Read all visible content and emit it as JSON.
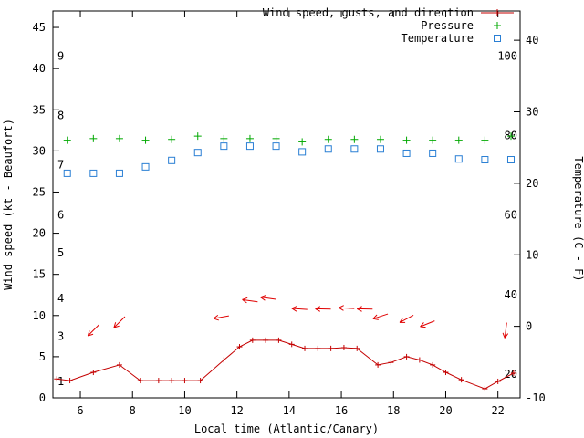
{
  "page": {
    "background": "#ffffff"
  },
  "chart_data": {
    "type": "line",
    "title": "",
    "xlabel": "Local time (Atlantic/Canary)",
    "ylabel_left": "Wind speed (kt - Beaufort)",
    "ylabel_right": "Temperature (C - F)",
    "x_range": [
      4.95,
      22.85
    ],
    "y_left_range": [
      0,
      47
    ],
    "y_right_range": [
      -10,
      44.1
    ],
    "x_ticks": [
      6,
      8,
      10,
      12,
      14,
      16,
      18,
      20,
      22
    ],
    "y_left_ticks": [
      0,
      5,
      10,
      15,
      20,
      25,
      30,
      35,
      40,
      45
    ],
    "y_right_ticks": [
      -10,
      0,
      10,
      20,
      30,
      40
    ],
    "grid": false,
    "legend_position": "top-right-inside",
    "beaufort_scale_labels": [
      {
        "label": "1",
        "kt": 2.0
      },
      {
        "label": "3",
        "kt": 7.5
      },
      {
        "label": "4",
        "kt": 12.1
      },
      {
        "label": "5",
        "kt": 17.6
      },
      {
        "label": "6",
        "kt": 22.2
      },
      {
        "label": "7",
        "kt": 28.3
      },
      {
        "label": "8",
        "kt": 34.3
      },
      {
        "label": "9",
        "kt": 41.5
      }
    ],
    "fahrenheit_scale_labels": [
      {
        "label": "20",
        "c": -6.7
      },
      {
        "label": "40",
        "c": 4.4
      },
      {
        "label": "60",
        "c": 15.6
      },
      {
        "label": "80",
        "c": 26.7
      },
      {
        "label": "100",
        "c": 37.8
      }
    ],
    "legend": [
      {
        "label": "Wind speed, gusts, and direction",
        "color": "#c40000",
        "marker": "line-plus"
      },
      {
        "label": "Pressure",
        "color": "#00a800",
        "marker": "plus"
      },
      {
        "label": "Temperature",
        "color": "#2a7fd4",
        "marker": "square"
      }
    ],
    "series": {
      "wind_speed": {
        "name": "Wind speed, gusts, and direction",
        "color": "#c40000",
        "axis": "left",
        "x": [
          5.1,
          5.6,
          6.5,
          7.5,
          8.3,
          9.0,
          9.5,
          10.0,
          10.6,
          11.5,
          12.1,
          12.6,
          13.1,
          13.6,
          14.1,
          14.6,
          15.1,
          15.6,
          16.1,
          16.6,
          17.4,
          17.9,
          18.5,
          19.0,
          19.5,
          20.0,
          20.6,
          21.5,
          22.0,
          22.6
        ],
        "kt": [
          2.3,
          2.1,
          3.1,
          4.0,
          2.1,
          2.1,
          2.1,
          2.1,
          2.1,
          4.6,
          6.2,
          7.0,
          7.0,
          7.0,
          6.5,
          6.0,
          6.0,
          6.0,
          6.1,
          6.0,
          4.0,
          4.3,
          5.0,
          4.6,
          4.0,
          3.1,
          2.2,
          1.1,
          2.0,
          3.0
        ]
      },
      "pressure": {
        "name": "Pressure",
        "color": "#00a800",
        "axis": "hidden",
        "x": [
          5.5,
          6.5,
          7.5,
          8.5,
          9.5,
          10.5,
          11.5,
          12.5,
          13.5,
          14.5,
          15.5,
          16.5,
          17.5,
          18.5,
          19.5,
          20.5,
          21.5,
          22.5
        ],
        "y_kt": [
          31.3,
          31.5,
          31.5,
          31.3,
          31.4,
          31.8,
          31.5,
          31.5,
          31.5,
          31.1,
          31.4,
          31.4,
          31.4,
          31.3,
          31.3,
          31.3,
          31.3,
          31.8
        ]
      },
      "temperature": {
        "name": "Temperature",
        "color": "#2a7fd4",
        "axis": "right",
        "x": [
          5.5,
          6.5,
          7.5,
          8.5,
          9.5,
          10.5,
          11.5,
          12.5,
          13.5,
          14.5,
          15.5,
          16.5,
          17.5,
          18.5,
          19.5,
          20.5,
          21.5,
          22.5
        ],
        "c": [
          21.4,
          21.4,
          21.4,
          22.3,
          23.2,
          24.3,
          25.2,
          25.2,
          25.2,
          24.4,
          24.8,
          24.8,
          24.8,
          24.2,
          24.2,
          23.4,
          23.3,
          23.3
        ]
      },
      "wind_direction_arrows": {
        "name": "Gust / direction arrows",
        "color": "#e00000",
        "points": [
          {
            "x": 6.5,
            "kt": 8.2,
            "angle_deg": 135
          },
          {
            "x": 7.5,
            "kt": 9.2,
            "angle_deg": 135
          },
          {
            "x": 11.4,
            "kt": 9.8,
            "angle_deg": 170
          },
          {
            "x": 12.5,
            "kt": 11.8,
            "angle_deg": 188
          },
          {
            "x": 13.2,
            "kt": 12.1,
            "angle_deg": 188
          },
          {
            "x": 14.4,
            "kt": 10.8,
            "angle_deg": 184
          },
          {
            "x": 15.3,
            "kt": 10.8,
            "angle_deg": 181
          },
          {
            "x": 16.2,
            "kt": 10.9,
            "angle_deg": 183
          },
          {
            "x": 16.9,
            "kt": 10.8,
            "angle_deg": 181
          },
          {
            "x": 17.5,
            "kt": 9.9,
            "angle_deg": 162
          },
          {
            "x": 18.5,
            "kt": 9.6,
            "angle_deg": 152
          },
          {
            "x": 19.3,
            "kt": 9.0,
            "angle_deg": 158
          },
          {
            "x": 22.3,
            "kt": 8.2,
            "angle_deg": 97
          }
        ]
      }
    }
  }
}
